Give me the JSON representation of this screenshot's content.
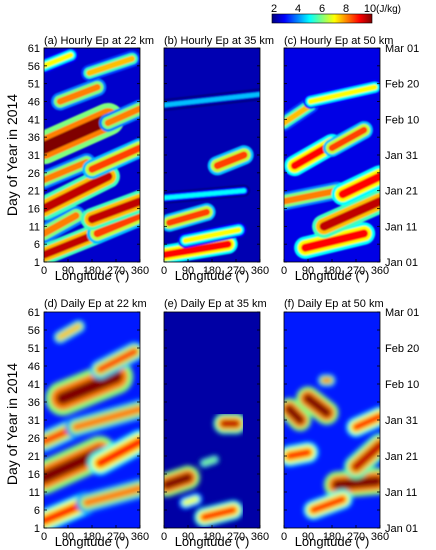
{
  "colorbar": {
    "ticks": [
      "2",
      "4",
      "6",
      "8",
      "10"
    ],
    "unit": "(J/kg)",
    "range": [
      2,
      10
    ],
    "colors": [
      "#00007f",
      "#0000ff",
      "#007fff",
      "#00ffff",
      "#7fff7f",
      "#ffff00",
      "#ff7f00",
      "#ff0000",
      "#7f0000"
    ]
  },
  "shared": {
    "ylabel": "Day of Year in 2014",
    "xlabel": "Longitude (°)",
    "y_ticks": [
      "1",
      "6",
      "11",
      "16",
      "21",
      "26",
      "31",
      "36",
      "41",
      "46",
      "51",
      "56",
      "61"
    ],
    "x_ticks": [
      "0",
      "90",
      "180",
      "270",
      "360"
    ],
    "date_ticks": [
      "Jan 01",
      "Jan 11",
      "Jan 21",
      "Jan 31",
      "Feb 10",
      "Feb 20",
      "Mar 01"
    ]
  },
  "chart_data": [
    {
      "type": "heatmap",
      "title": "(a) Hourly Ep at 22 km",
      "xlabel": "Longitude (°)",
      "ylabel": "Day of Year in 2014",
      "xlim": [
        0,
        360
      ],
      "ylim": [
        1,
        61
      ],
      "value_range": [
        2,
        10
      ],
      "unit": "J/kg",
      "background_value": 2.6,
      "features": [
        {
          "x0": 0,
          "y0": 3,
          "x1": 200,
          "y1": 9,
          "width": 1.4,
          "value": 9.5
        },
        {
          "x0": 200,
          "y0": 9,
          "x1": 360,
          "y1": 14,
          "width": 1.4,
          "value": 8.5
        },
        {
          "x0": 0,
          "y0": 9,
          "x1": 120,
          "y1": 14,
          "width": 1.3,
          "value": 8
        },
        {
          "x0": 180,
          "y0": 13,
          "x1": 360,
          "y1": 18,
          "width": 1.5,
          "value": 9.5
        },
        {
          "x0": 0,
          "y0": 16,
          "x1": 240,
          "y1": 25,
          "width": 1.6,
          "value": 9.5
        },
        {
          "x0": 0,
          "y0": 24,
          "x1": 160,
          "y1": 29,
          "width": 1.2,
          "value": 8
        },
        {
          "x0": 180,
          "y0": 27,
          "x1": 360,
          "y1": 33,
          "width": 1.3,
          "value": 8.5
        },
        {
          "x0": 0,
          "y0": 33,
          "x1": 240,
          "y1": 41,
          "width": 2.2,
          "value": 10
        },
        {
          "x0": 240,
          "y0": 40,
          "x1": 360,
          "y1": 44,
          "width": 1.2,
          "value": 8
        },
        {
          "x0": 60,
          "y0": 46,
          "x1": 200,
          "y1": 50,
          "width": 1.2,
          "value": 8
        },
        {
          "x0": 170,
          "y0": 54,
          "x1": 330,
          "y1": 58,
          "width": 1.1,
          "value": 7.5
        },
        {
          "x0": 0,
          "y0": 56,
          "x1": 100,
          "y1": 59,
          "width": 1.0,
          "value": 7
        }
      ]
    },
    {
      "type": "heatmap",
      "title": "(b) Hourly Ep at 35 km",
      "xlabel": "Longitude (°)",
      "ylabel": "",
      "xlim": [
        0,
        360
      ],
      "ylim": [
        1,
        61
      ],
      "value_range": [
        2,
        10
      ],
      "unit": "J/kg",
      "background_value": 2.4,
      "features": [
        {
          "x0": 0,
          "y0": 3,
          "x1": 240,
          "y1": 6,
          "width": 1.3,
          "value": 9
        },
        {
          "x0": 20,
          "y0": 12,
          "x1": 160,
          "y1": 15,
          "width": 1.2,
          "value": 8.5
        },
        {
          "x0": 80,
          "y0": 7,
          "x1": 280,
          "y1": 10,
          "width": 1.0,
          "value": 7
        },
        {
          "x0": 200,
          "y0": 28,
          "x1": 300,
          "y1": 31,
          "width": 1.3,
          "value": 8.5
        },
        {
          "x0": 0,
          "y0": 19,
          "x1": 300,
          "y1": 21,
          "width": 0.8,
          "value": 5
        },
        {
          "x0": 0,
          "y0": 45,
          "x1": 360,
          "y1": 48,
          "width": 0.8,
          "value": 4.5
        }
      ]
    },
    {
      "type": "heatmap",
      "title": "(c) Hourly Ep at 50 km",
      "xlabel": "Longitude (°)",
      "ylabel": "",
      "xlim": [
        0,
        360
      ],
      "ylim": [
        1,
        61
      ],
      "value_range": [
        2,
        10
      ],
      "unit": "J/kg",
      "background_value": 2.8,
      "features": [
        {
          "x0": 80,
          "y0": 5,
          "x1": 300,
          "y1": 9,
          "width": 1.5,
          "value": 9
        },
        {
          "x0": 150,
          "y0": 11,
          "x1": 360,
          "y1": 18,
          "width": 1.6,
          "value": 9.5
        },
        {
          "x0": 0,
          "y0": 18,
          "x1": 200,
          "y1": 21,
          "width": 1.2,
          "value": 8
        },
        {
          "x0": 220,
          "y0": 20,
          "x1": 360,
          "y1": 25,
          "width": 1.5,
          "value": 9
        },
        {
          "x0": 40,
          "y0": 28,
          "x1": 180,
          "y1": 34,
          "width": 1.4,
          "value": 9
        },
        {
          "x0": 180,
          "y0": 33,
          "x1": 300,
          "y1": 38,
          "width": 1.2,
          "value": 8.5
        },
        {
          "x0": 0,
          "y0": 40,
          "x1": 100,
          "y1": 45,
          "width": 1.1,
          "value": 7.5
        },
        {
          "x0": 100,
          "y0": 46,
          "x1": 340,
          "y1": 50,
          "width": 1.0,
          "value": 7
        }
      ]
    },
    {
      "type": "heatmap",
      "title": "(d) Daily Ep at 22 km",
      "xlabel": "Longitude (°)",
      "ylabel": "Day of Year in 2014",
      "xlim": [
        0,
        360
      ],
      "ylim": [
        1,
        61
      ],
      "value_range": [
        2,
        10
      ],
      "unit": "J/kg",
      "background_value": 3.2,
      "features": [
        {
          "x0": 0,
          "y0": 3,
          "x1": 160,
          "y1": 8,
          "width": 1.5,
          "value": 9
        },
        {
          "x0": 160,
          "y0": 8,
          "x1": 360,
          "y1": 12,
          "width": 1.4,
          "value": 8
        },
        {
          "x0": 0,
          "y0": 15,
          "x1": 210,
          "y1": 22,
          "width": 2.2,
          "value": 10
        },
        {
          "x0": 210,
          "y0": 19,
          "x1": 360,
          "y1": 25,
          "width": 1.6,
          "value": 9
        },
        {
          "x0": 0,
          "y0": 25,
          "x1": 120,
          "y1": 29,
          "width": 1.4,
          "value": 8.5
        },
        {
          "x0": 120,
          "y0": 29,
          "x1": 360,
          "y1": 34,
          "width": 1.4,
          "value": 8
        },
        {
          "x0": 70,
          "y0": 37,
          "x1": 270,
          "y1": 43,
          "width": 2.3,
          "value": 10
        },
        {
          "x0": 210,
          "y0": 45,
          "x1": 340,
          "y1": 50,
          "width": 1.3,
          "value": 8.5
        },
        {
          "x0": 60,
          "y0": 54,
          "x1": 130,
          "y1": 57,
          "width": 1.0,
          "value": 7.5
        }
      ]
    },
    {
      "type": "heatmap",
      "title": "(e) Daily Ep at 35 km",
      "xlabel": "Longitude (°)",
      "ylabel": "",
      "xlim": [
        0,
        360
      ],
      "ylim": [
        1,
        61
      ],
      "value_range": [
        2,
        10
      ],
      "unit": "J/kg",
      "background_value": 2.3,
      "features": [
        {
          "x0": 10,
          "y0": 13,
          "x1": 90,
          "y1": 15,
          "width": 1.6,
          "value": 10
        },
        {
          "x0": 150,
          "y0": 4,
          "x1": 260,
          "y1": 6,
          "width": 1.3,
          "value": 9
        },
        {
          "x0": 80,
          "y0": 8,
          "x1": 120,
          "y1": 9,
          "width": 0.9,
          "value": 7
        },
        {
          "x0": 225,
          "y0": 30,
          "x1": 270,
          "y1": 30,
          "width": 1.4,
          "value": 9.5
        },
        {
          "x0": 150,
          "y0": 19,
          "x1": 190,
          "y1": 20,
          "width": 0.8,
          "value": 6
        }
      ]
    },
    {
      "type": "heatmap",
      "title": "(f) Daily Ep at 50 km",
      "xlabel": "Longitude (°)",
      "ylabel": "",
      "xlim": [
        0,
        360
      ],
      "ylim": [
        1,
        61
      ],
      "value_range": [
        2,
        10
      ],
      "unit": "J/kg",
      "background_value": 3.2,
      "features": [
        {
          "x0": 200,
          "y0": 13,
          "x1": 350,
          "y1": 14,
          "width": 1.8,
          "value": 10
        },
        {
          "x0": 110,
          "y0": 6,
          "x1": 220,
          "y1": 9,
          "width": 1.3,
          "value": 9
        },
        {
          "x0": 270,
          "y0": 18,
          "x1": 360,
          "y1": 24,
          "width": 1.6,
          "value": 9.5
        },
        {
          "x0": 20,
          "y0": 21,
          "x1": 90,
          "y1": 22,
          "width": 1.4,
          "value": 9
        },
        {
          "x0": 20,
          "y0": 34,
          "x1": 60,
          "y1": 31,
          "width": 1.5,
          "value": 10
        },
        {
          "x0": 90,
          "y0": 37,
          "x1": 160,
          "y1": 33,
          "width": 1.6,
          "value": 10
        },
        {
          "x0": 150,
          "y0": 42,
          "x1": 170,
          "y1": 42,
          "width": 0.9,
          "value": 8
        },
        {
          "x0": 270,
          "y0": 29,
          "x1": 360,
          "y1": 32,
          "width": 1.3,
          "value": 9
        }
      ]
    }
  ]
}
